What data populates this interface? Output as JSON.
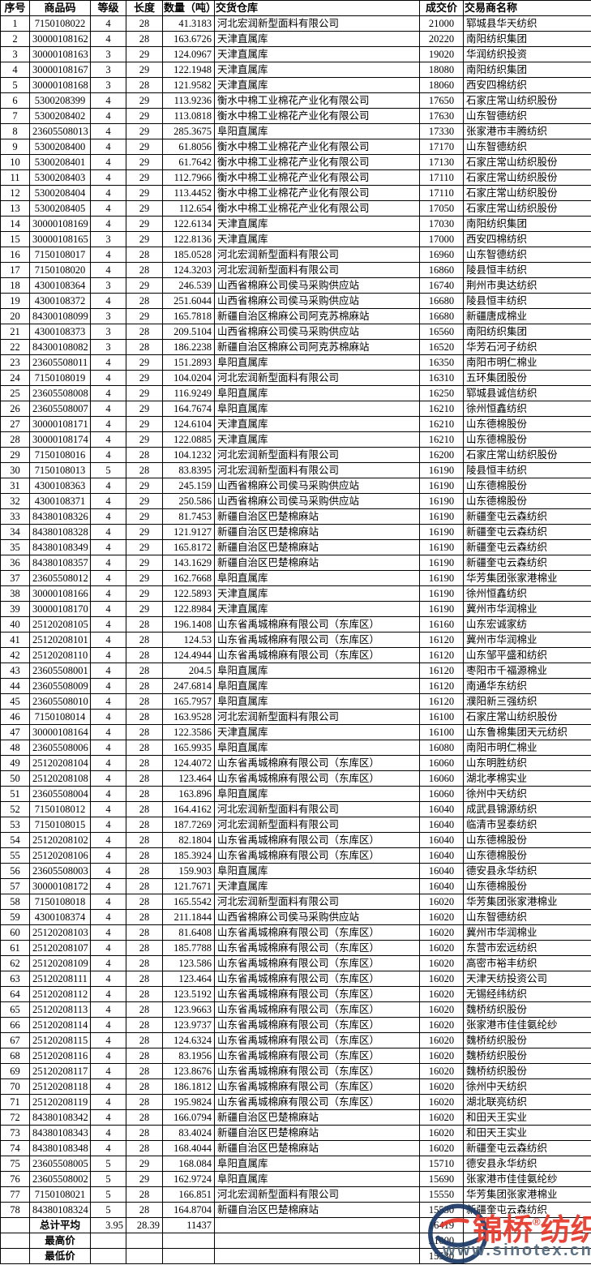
{
  "chart_data": {
    "type": "table",
    "columns": [
      "序号",
      "商品码",
      "等级",
      "长度",
      "数量（吨）",
      "交货仓库",
      "成交价",
      "交易商名称"
    ],
    "column_keys": [
      "seq",
      "code",
      "grade",
      "length",
      "qty",
      "warehouse",
      "price",
      "trader"
    ],
    "rows": [
      [
        "1",
        "7150108022",
        "4",
        "28",
        "41.3183",
        "河北宏润新型面料有限公司",
        "21000",
        "郓城县华天纺织"
      ],
      [
        "2",
        "30000108162",
        "4",
        "28",
        "163.6726",
        "天津直属库",
        "20220",
        "南阳纺织集团"
      ],
      [
        "3",
        "30000108163",
        "3",
        "29",
        "124.0967",
        "天津直属库",
        "19020",
        "华润纺织投资"
      ],
      [
        "4",
        "30000108167",
        "3",
        "29",
        "122.1948",
        "天津直属库",
        "18080",
        "南阳纺织集团"
      ],
      [
        "5",
        "30000108168",
        "3",
        "28",
        "121.9582",
        "天津直属库",
        "18060",
        "西安四棉纺织"
      ],
      [
        "6",
        "5300208399",
        "4",
        "29",
        "113.9236",
        "衡水中棉工业棉花产业化有限公司",
        "17650",
        "石家庄常山纺织股份"
      ],
      [
        "7",
        "5300208402",
        "4",
        "29",
        "113.0818",
        "衡水中棉工业棉花产业化有限公司",
        "17630",
        "山东智德纺织"
      ],
      [
        "8",
        "23605508013",
        "4",
        "29",
        "285.3675",
        "阜阳直属库",
        "17330",
        "张家港市丰腾纺织"
      ],
      [
        "9",
        "5300208400",
        "4",
        "29",
        "61.8056",
        "衡水中棉工业棉花产业化有限公司",
        "17170",
        "山东智德纺织"
      ],
      [
        "10",
        "5300208401",
        "4",
        "29",
        "61.7642",
        "衡水中棉工业棉花产业化有限公司",
        "17130",
        "石家庄常山纺织股份"
      ],
      [
        "11",
        "5300208403",
        "4",
        "29",
        "112.7966",
        "衡水中棉工业棉花产业化有限公司",
        "17110",
        "石家庄常山纺织股份"
      ],
      [
        "12",
        "5300208404",
        "4",
        "29",
        "113.4452",
        "衡水中棉工业棉花产业化有限公司",
        "17110",
        "石家庄常山纺织股份"
      ],
      [
        "13",
        "5300208405",
        "4",
        "29",
        "112.654",
        "衡水中棉工业棉花产业化有限公司",
        "17050",
        "石家庄常山纺织股份"
      ],
      [
        "14",
        "30000108169",
        "4",
        "29",
        "122.6134",
        "天津直属库",
        "17030",
        "南阳纺织集团"
      ],
      [
        "15",
        "30000108165",
        "3",
        "29",
        "122.8136",
        "天津直属库",
        "17000",
        "西安四棉纺织"
      ],
      [
        "16",
        "7150108017",
        "4",
        "28",
        "185.0528",
        "河北宏润新型面料有限公司",
        "16960",
        "山东智德纺织"
      ],
      [
        "17",
        "7150108020",
        "4",
        "28",
        "124.3203",
        "河北宏润新型面料有限公司",
        "16860",
        "陵县恒丰纺织"
      ],
      [
        "18",
        "4300108364",
        "3",
        "29",
        "246.539",
        "山西省棉麻公司侯马采购供应站",
        "16740",
        "荆州市奥达纺织"
      ],
      [
        "19",
        "4300108372",
        "4",
        "28",
        "251.6044",
        "山西省棉麻公司侯马采购供应站",
        "16680",
        "陵县恒丰纺织"
      ],
      [
        "20",
        "84300108099",
        "3",
        "29",
        "165.7818",
        "新疆自治区棉麻公司阿克苏棉麻站",
        "16680",
        "新疆唐成棉业"
      ],
      [
        "21",
        "4300108373",
        "3",
        "28",
        "209.5104",
        "山西省棉麻公司侯马采购供应站",
        "16560",
        "南阳纺织集团"
      ],
      [
        "22",
        "84300108082",
        "3",
        "28",
        "186.2238",
        "新疆自治区棉麻公司阿克苏棉麻站",
        "16520",
        "华芳石河子纺织"
      ],
      [
        "23",
        "23605508011",
        "4",
        "29",
        "151.2893",
        "阜阳直属库",
        "16350",
        "南阳市明仁棉业"
      ],
      [
        "24",
        "7150108019",
        "4",
        "29",
        "104.0204",
        "河北宏润新型面料有限公司",
        "16310",
        "五环集团股份"
      ],
      [
        "25",
        "23605508008",
        "4",
        "29",
        "116.9249",
        "阜阳直属库",
        "16250",
        "郓城县诚信纺织"
      ],
      [
        "26",
        "23605508007",
        "4",
        "29",
        "164.7674",
        "阜阳直属库",
        "16210",
        "徐州恒鑫纺织"
      ],
      [
        "27",
        "30000108171",
        "4",
        "29",
        "124.6104",
        "天津直属库",
        "16210",
        "山东德棉股份"
      ],
      [
        "28",
        "30000108174",
        "4",
        "29",
        "122.0885",
        "天津直属库",
        "16210",
        "山东德棉股份"
      ],
      [
        "29",
        "7150108016",
        "4",
        "28",
        "104.1232",
        "河北宏润新型面料有限公司",
        "16200",
        "石家庄常山纺织股份"
      ],
      [
        "30",
        "7150108013",
        "5",
        "28",
        "83.8395",
        "河北宏润新型面料有限公司",
        "16190",
        "陵县恒丰纺织"
      ],
      [
        "31",
        "4300108363",
        "4",
        "29",
        "245.159",
        "山西省棉麻公司侯马采购供应站",
        "16190",
        "山东德棉股份"
      ],
      [
        "32",
        "4300108371",
        "4",
        "29",
        "250.586",
        "山西省棉麻公司侯马采购供应站",
        "16190",
        "山东德棉股份"
      ],
      [
        "33",
        "84380108326",
        "4",
        "29",
        "81.7453",
        "新疆自治区巴楚棉麻站",
        "16190",
        "新疆奎屯云森纺织"
      ],
      [
        "34",
        "84380108328",
        "4",
        "29",
        "121.9127",
        "新疆自治区巴楚棉麻站",
        "16190",
        "新疆奎屯云森纺织"
      ],
      [
        "35",
        "84380108349",
        "4",
        "29",
        "165.8172",
        "新疆自治区巴楚棉麻站",
        "16190",
        "新疆奎屯云森纺织"
      ],
      [
        "36",
        "84380108357",
        "4",
        "29",
        "143.1629",
        "新疆自治区巴楚棉麻站",
        "16190",
        "新疆奎屯云森纺织"
      ],
      [
        "37",
        "23605508012",
        "4",
        "29",
        "162.7668",
        "阜阳直属库",
        "16190",
        "华芳集团张家港棉业"
      ],
      [
        "38",
        "30000108166",
        "4",
        "29",
        "122.5893",
        "天津直属库",
        "16190",
        "徐州恒鑫纺织"
      ],
      [
        "39",
        "30000108170",
        "4",
        "29",
        "122.8984",
        "天津直属库",
        "16190",
        "冀州市华润棉业"
      ],
      [
        "40",
        "25120208105",
        "4",
        "28",
        "196.1408",
        "山东省禹城棉麻有限公司（东库区）",
        "16160",
        "山东宏诚家纺"
      ],
      [
        "41",
        "25120208101",
        "4",
        "28",
        "124.53",
        "山东省禹城棉麻有限公司（东库区）",
        "16120",
        "冀州市华润棉业"
      ],
      [
        "42",
        "25120208110",
        "4",
        "28",
        "124.4944",
        "山东省禹城棉麻有限公司（东库区）",
        "16120",
        "山东邹平盛和纺织"
      ],
      [
        "43",
        "23605508001",
        "4",
        "28",
        "204.5",
        "阜阳直属库",
        "16120",
        "枣阳市千福源棉业"
      ],
      [
        "44",
        "23605508009",
        "4",
        "28",
        "247.6814",
        "阜阳直属库",
        "16120",
        "南通华东纺织"
      ],
      [
        "45",
        "23605508010",
        "4",
        "28",
        "165.7957",
        "阜阳直属库",
        "16120",
        "濮阳新三强纺织"
      ],
      [
        "46",
        "7150108014",
        "4",
        "28",
        "163.9528",
        "河北宏润新型面料有限公司",
        "16100",
        "石家庄常山纺织股份"
      ],
      [
        "47",
        "30000108164",
        "4",
        "28",
        "122.3586",
        "天津直属库",
        "16100",
        "山东鲁棉集团天元纺织"
      ],
      [
        "48",
        "23605508006",
        "4",
        "28",
        "165.9935",
        "阜阳直属库",
        "16080",
        "南阳市明仁棉业"
      ],
      [
        "49",
        "25120208104",
        "4",
        "28",
        "124.4072",
        "山东省禹城棉麻有限公司（东库区）",
        "16060",
        "山东明胜纺织"
      ],
      [
        "50",
        "25120208108",
        "4",
        "28",
        "123.464",
        "山东省禹城棉麻有限公司（东库区）",
        "16060",
        "湖北孝棉实业"
      ],
      [
        "51",
        "23605508004",
        "4",
        "28",
        "163.896",
        "阜阳直属库",
        "16060",
        "徐州中天纺织"
      ],
      [
        "52",
        "7150108012",
        "4",
        "28",
        "164.4162",
        "河北宏润新型面料有限公司",
        "16040",
        "成武县锦源纺织"
      ],
      [
        "53",
        "7150108015",
        "4",
        "28",
        "187.7269",
        "河北宏润新型面料有限公司",
        "16040",
        "临清市昱泰纺织"
      ],
      [
        "54",
        "25120208102",
        "4",
        "28",
        "82.1804",
        "山东省禹城棉麻有限公司（东库区）",
        "16040",
        "山东德棉股份"
      ],
      [
        "55",
        "25120208106",
        "4",
        "28",
        "185.3924",
        "山东省禹城棉麻有限公司（东库区）",
        "16040",
        "山东德棉股份"
      ],
      [
        "56",
        "23605508003",
        "4",
        "28",
        "159.903",
        "阜阳直属库",
        "16040",
        "德安县永华纺织"
      ],
      [
        "57",
        "30000108172",
        "4",
        "28",
        "121.7671",
        "天津直属库",
        "16040",
        "山东德棉股份"
      ],
      [
        "58",
        "7150108018",
        "4",
        "28",
        "165.5542",
        "河北宏润新型面料有限公司",
        "16020",
        "华芳集团张家港棉业"
      ],
      [
        "59",
        "4300108374",
        "4",
        "28",
        "211.1844",
        "山西省棉麻公司侯马采购供应站",
        "16020",
        "山东智德纺织"
      ],
      [
        "60",
        "25120208103",
        "4",
        "28",
        "81.6408",
        "山东省禹城棉麻有限公司（东库区）",
        "16020",
        "冀州市华润棉业"
      ],
      [
        "61",
        "25120208107",
        "4",
        "28",
        "185.7788",
        "山东省禹城棉麻有限公司（东库区）",
        "16020",
        "东营市宏远纺织"
      ],
      [
        "62",
        "25120208109",
        "4",
        "28",
        "123.586",
        "山东省禹城棉麻有限公司（东库区）",
        "16020",
        "高密市裕丰纺织"
      ],
      [
        "63",
        "25120208111",
        "4",
        "28",
        "123.464",
        "山东省禹城棉麻有限公司（东库区）",
        "16020",
        "天津天纺投资公司"
      ],
      [
        "64",
        "25120208112",
        "4",
        "28",
        "123.5192",
        "山东省禹城棉麻有限公司（东库区）",
        "16020",
        "无锡经纬纺织"
      ],
      [
        "65",
        "25120208113",
        "4",
        "28",
        "123.9663",
        "山东省禹城棉麻有限公司（东库区）",
        "16020",
        "魏桥纺织股份"
      ],
      [
        "66",
        "25120208114",
        "4",
        "28",
        "123.9737",
        "山东省禹城棉麻有限公司（东库区）",
        "16020",
        "张家港市佳佳氨纶纱"
      ],
      [
        "67",
        "25120208115",
        "4",
        "28",
        "124.6324",
        "山东省禹城棉麻有限公司（东库区）",
        "16020",
        "魏桥纺织股份"
      ],
      [
        "68",
        "25120208116",
        "4",
        "28",
        "83.1956",
        "山东省禹城棉麻有限公司（东库区）",
        "16020",
        "魏桥纺织股份"
      ],
      [
        "69",
        "25120208117",
        "4",
        "28",
        "123.8676",
        "山东省禹城棉麻有限公司（东库区）",
        "16020",
        "魏桥纺织股份"
      ],
      [
        "70",
        "25120208118",
        "4",
        "28",
        "186.1812",
        "山东省禹城棉麻有限公司（东库区）",
        "16020",
        "徐州中天纺织"
      ],
      [
        "71",
        "25120208119",
        "4",
        "28",
        "195.9824",
        "山东省禹城棉麻有限公司（东库区）",
        "16020",
        "湖北联亮纺织"
      ],
      [
        "72",
        "84380108342",
        "4",
        "28",
        "166.0794",
        "新疆自治区巴楚棉麻站",
        "16020",
        "和田天王实业"
      ],
      [
        "73",
        "84380108343",
        "4",
        "28",
        "83.4024",
        "新疆自治区巴楚棉麻站",
        "16020",
        "和田天王实业"
      ],
      [
        "74",
        "84380108348",
        "4",
        "28",
        "168.4044",
        "新疆自治区巴楚棉麻站",
        "16020",
        "新疆奎屯云森纺织"
      ],
      [
        "75",
        "23605508005",
        "5",
        "29",
        "168.084",
        "阜阳直属库",
        "15710",
        "德安县永华纺织"
      ],
      [
        "76",
        "23605508002",
        "5",
        "29",
        "162.9724",
        "阜阳直属库",
        "15690",
        "张家港市佳佳氨纶纱"
      ],
      [
        "77",
        "7150108021",
        "5",
        "28",
        "166.851",
        "河北宏润新型面料有限公司",
        "15550",
        "华芳集团张家港棉业"
      ],
      [
        "78",
        "84380108324",
        "5",
        "28",
        "164.8704",
        "新疆自治区巴楚棉麻站",
        "15530",
        "新疆奎屯云森纺织"
      ]
    ],
    "summary_rows": [
      {
        "label": "总计平均",
        "grade": "3.95",
        "length": "28.39",
        "qty": "11437",
        "price": "16419"
      },
      {
        "label": "最高价",
        "grade": "",
        "length": "",
        "qty": "",
        "price": "21000"
      },
      {
        "label": "最低价",
        "grade": "",
        "length": "",
        "qty": "",
        "price": "15530"
      }
    ],
    "layout_hints": {
      "grid": "on",
      "summary_price_partially_covered_by_watermark": true
    }
  },
  "watermark": {
    "brand": "锦桥",
    "registered": "®",
    "brand2": "纺织网",
    "url": "www.sinotex.cn"
  },
  "colors": {
    "border": "#000000",
    "text": "#000000",
    "summary_label_red": "#9e2a24",
    "summary_price_red": "#b8312a",
    "brand_red": "#e6382b",
    "logo_navy": "#1b3a66",
    "url_gray": "#51697c",
    "background": "#ffffff"
  }
}
